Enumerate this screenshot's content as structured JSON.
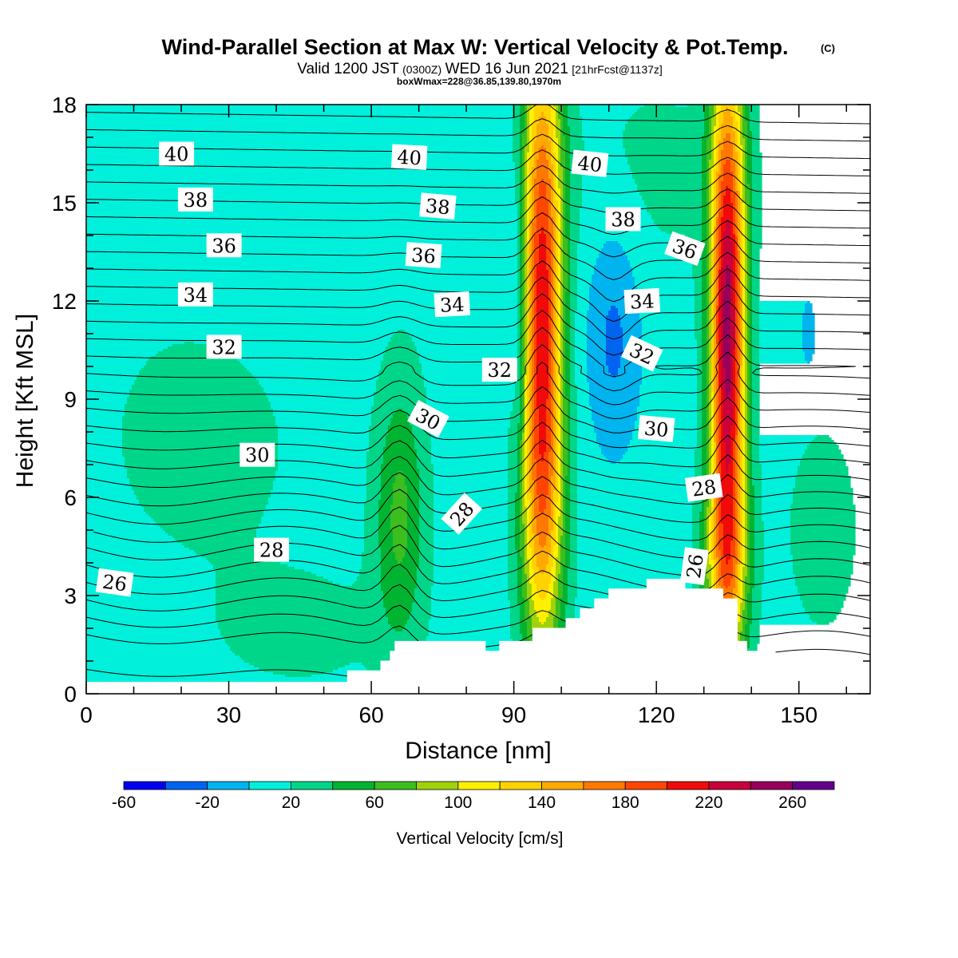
{
  "chart_data": {
    "type": "heatmap",
    "title": "Wind-Parallel Section at Max W: Vertical Velocity & Pot.Temp.",
    "title_mark": "(C)",
    "subtitle": {
      "a": "Valid 1200 JST",
      "b": "(0300Z)",
      "c": "WED 16 Jun 2021",
      "d": "[21hrFcst@1137z]"
    },
    "subtitle2": "boxWmax=228@36.85,139.80,1970m",
    "xlabel": "Distance [nm]",
    "ylabel": "Height [Kft MSL]",
    "xlim": [
      0,
      165
    ],
    "ylim": [
      0,
      18
    ],
    "x_ticks": [
      "0",
      "30",
      "60",
      "90",
      "120",
      "150"
    ],
    "x_tick_values": [
      0,
      30,
      60,
      90,
      120,
      150
    ],
    "y_ticks": [
      "0",
      "3",
      "6",
      "9",
      "12",
      "15",
      "18"
    ],
    "y_tick_values": [
      0,
      3,
      6,
      9,
      12,
      15,
      18
    ],
    "colorbar": {
      "title": "Vertical Velocity [cm/s]",
      "levels": [
        -60,
        -40,
        -20,
        0,
        20,
        40,
        60,
        80,
        100,
        120,
        140,
        160,
        180,
        200,
        220,
        240,
        260,
        280
      ],
      "labels": [
        "-60",
        "-20",
        "20",
        "60",
        "100",
        "140",
        "180",
        "220",
        "260"
      ],
      "label_values": [
        -60,
        -20,
        20,
        60,
        100,
        140,
        180,
        220,
        260
      ],
      "colors": [
        "#0000f0",
        "#0064f0",
        "#00b4f0",
        "#00f0dc",
        "#00d68a",
        "#00b432",
        "#3cbe1e",
        "#a0d20a",
        "#fff000",
        "#ffd200",
        "#ffaa00",
        "#ff7800",
        "#ff4600",
        "#f00a0a",
        "#c8003c",
        "#96005a",
        "#64008c"
      ]
    },
    "background_w": 10,
    "w_features": [
      {
        "x": 96,
        "z": 12,
        "sx": 3.0,
        "sz": 6.0,
        "value": 200
      },
      {
        "x": 96,
        "z": 5,
        "sx": 3.5,
        "sz": 3.0,
        "value": 60
      },
      {
        "x": 135,
        "z": 11,
        "sx": 2.6,
        "sz": 6.0,
        "value": 240
      },
      {
        "x": 134.5,
        "z": 3.8,
        "sx": 3.5,
        "sz": 2.0,
        "value": 70
      },
      {
        "x": 66,
        "z": 5.5,
        "sx": 3.8,
        "sz": 2.8,
        "value": 55
      },
      {
        "x": 91,
        "z": 12,
        "sx": 1.2,
        "sz": 3.5,
        "value": -40
      },
      {
        "x": 111,
        "z": 11,
        "sx": 4.0,
        "sz": 2.5,
        "value": -35
      },
      {
        "x": 152,
        "z": 11,
        "sx": 1.0,
        "sz": 0.7,
        "value": -30
      },
      {
        "x": 25,
        "z": 7.5,
        "sx": 14,
        "sz": 2.5,
        "value": 18
      },
      {
        "x": 45,
        "z": 2.0,
        "sx": 15,
        "sz": 1.5,
        "value": 16
      },
      {
        "x": 155,
        "z": 5,
        "sx": 7,
        "sz": 3,
        "value": 16
      },
      {
        "x": 120,
        "z": 16,
        "sx": 16,
        "sz": 2.5,
        "value": 14
      },
      {
        "x": 72,
        "z": 13,
        "sx": 8,
        "sz": 3,
        "value": 4
      },
      {
        "x": 10,
        "z": 14,
        "sx": 15,
        "sz": 5,
        "value": 4
      }
    ],
    "terrain": {
      "x": [
        0,
        55,
        55,
        60,
        60,
        61,
        61,
        62,
        62,
        64,
        64,
        65,
        65,
        68,
        68,
        84,
        84,
        87,
        87,
        94,
        94,
        101,
        101,
        104,
        104,
        107,
        107,
        110,
        110,
        113,
        113,
        118,
        118,
        121,
        121,
        126,
        126,
        130,
        130,
        134,
        134,
        137,
        137,
        139,
        139,
        145,
        145,
        148,
        148,
        159,
        159,
        165
      ],
      "z": [
        0.35,
        0.35,
        0.7,
        0.7,
        0.7,
        0.7,
        0.7,
        0.7,
        1.0,
        1.0,
        1.3,
        1.3,
        1.6,
        1.6,
        1.6,
        1.6,
        1.3,
        1.3,
        1.6,
        1.6,
        2.0,
        2.0,
        2.3,
        2.3,
        2.6,
        2.6,
        2.9,
        2.9,
        3.2,
        3.2,
        3.2,
        3.2,
        3.5,
        3.5,
        3.5,
        3.5,
        3.2,
        3.2,
        3.2,
        3.2,
        2.9,
        2.9,
        1.6,
        1.6,
        1.3,
        1.3,
        1.0,
        1.0,
        0.7,
        0.7,
        0.35,
        0.35
      ]
    },
    "theta_levels": [
      21,
      22,
      23,
      24,
      25,
      26,
      26.5,
      27,
      27.5,
      28,
      28.5,
      29,
      29.5,
      30,
      30.5,
      31,
      31.5,
      32,
      32.5,
      33,
      33.5,
      34,
      34.5,
      35,
      35.5,
      36,
      36.5,
      37,
      37.5,
      38,
      38.5,
      39,
      39.5,
      40,
      40.5,
      41
    ],
    "theta_labels": [
      {
        "text": "40",
        "x": 19,
        "z": 16.5,
        "angle": 0
      },
      {
        "text": "40",
        "x": 68,
        "z": 16.4,
        "angle": 3
      },
      {
        "text": "40",
        "x": 106,
        "z": 16.2,
        "angle": 6
      },
      {
        "text": "38",
        "x": 23,
        "z": 15.1,
        "angle": 0
      },
      {
        "text": "38",
        "x": 74,
        "z": 14.9,
        "angle": 5
      },
      {
        "text": "38",
        "x": 113,
        "z": 14.5,
        "angle": 0
      },
      {
        "text": "36",
        "x": 29,
        "z": 13.7,
        "angle": 0
      },
      {
        "text": "36",
        "x": 71,
        "z": 13.4,
        "angle": 4
      },
      {
        "text": "36",
        "x": 126,
        "z": 13.6,
        "angle": 20
      },
      {
        "text": "34",
        "x": 23,
        "z": 12.2,
        "angle": 0
      },
      {
        "text": "34",
        "x": 77,
        "z": 11.9,
        "angle": -3
      },
      {
        "text": "34",
        "x": 117,
        "z": 12.0,
        "angle": -3
      },
      {
        "text": "32",
        "x": 29,
        "z": 10.6,
        "angle": 0
      },
      {
        "text": "32",
        "x": 87,
        "z": 9.9,
        "angle": 0
      },
      {
        "text": "32",
        "x": 117,
        "z": 10.4,
        "angle": 25
      },
      {
        "text": "30",
        "x": 36,
        "z": 7.3,
        "angle": 0
      },
      {
        "text": "30",
        "x": 72,
        "z": 8.4,
        "angle": 28
      },
      {
        "text": "30",
        "x": 120,
        "z": 8.1,
        "angle": 5
      },
      {
        "text": "28",
        "x": 39,
        "z": 4.4,
        "angle": 0
      },
      {
        "text": "28",
        "x": 79,
        "z": 5.5,
        "angle": -48
      },
      {
        "text": "28",
        "x": 130,
        "z": 6.3,
        "angle": -8
      },
      {
        "text": "26",
        "x": 6,
        "z": 3.4,
        "angle": 8
      },
      {
        "text": "26",
        "x": 128,
        "z": 3.9,
        "angle": -82
      }
    ]
  }
}
